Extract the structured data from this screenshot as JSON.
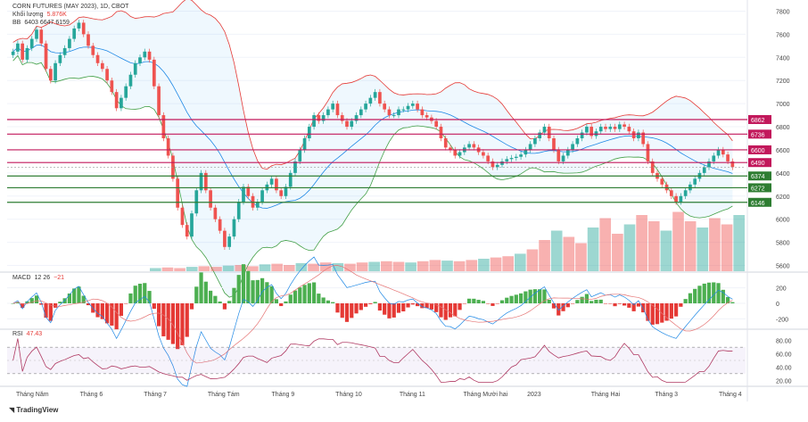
{
  "chart_data": {
    "type": "candlestick",
    "title": "CORN FUTURES (MAY 2023), 1D, CBOT",
    "overlays": {
      "volume_label": "Khối lượng",
      "volume_value": "5.876K",
      "bb_label": "BB",
      "bb_values": "6403 6647 6159"
    },
    "price_axis": {
      "ticks": [
        "7800",
        "7600",
        "7400",
        "7200",
        "7000",
        "6800",
        "6600",
        "6400",
        "6200",
        "6000",
        "5800",
        "5600"
      ],
      "range": [
        5550,
        7850
      ]
    },
    "price_levels": [
      {
        "value": 6862,
        "label": "6862",
        "color": "#c2185b"
      },
      {
        "value": 6736,
        "label": "6736",
        "color": "#c2185b"
      },
      {
        "value": 6600,
        "label": "6600",
        "color": "#c2185b"
      },
      {
        "value": 6490,
        "label": "6490",
        "color": "#c2185b"
      },
      {
        "value": 6374,
        "label": "6374",
        "color": "#2e7d32"
      },
      {
        "value": 6272,
        "label": "6272",
        "color": "#2e7d32"
      },
      {
        "value": 6146,
        "label": "6146",
        "color": "#2e7d32"
      }
    ],
    "time_axis": [
      "Tháng Năm",
      "Tháng 6",
      "Tháng 7",
      "Tháng Tám",
      "Tháng 9",
      "Tháng 10",
      "Tháng 11",
      "Tháng Mười hai",
      "2023",
      "Tháng Hai",
      "Tháng 3",
      "Tháng 4"
    ],
    "close_series": [
      7450,
      7520,
      7380,
      7480,
      7560,
      7640,
      7520,
      7300,
      7200,
      7350,
      7420,
      7480,
      7560,
      7650,
      7700,
      7600,
      7500,
      7420,
      7350,
      7300,
      7200,
      7100,
      6960,
      7050,
      7150,
      7250,
      7350,
      7400,
      7450,
      7380,
      7150,
      6900,
      6700,
      6550,
      6350,
      6100,
      5950,
      5850,
      6050,
      6250,
      6400,
      6250,
      6100,
      6000,
      5900,
      5760,
      5850,
      6000,
      6150,
      6280,
      6200,
      6100,
      6150,
      6250,
      6300,
      6350,
      6250,
      6200,
      6280,
      6400,
      6500,
      6600,
      6700,
      6800,
      6900,
      6850,
      6900,
      6950,
      7000,
      6900,
      6850,
      6800,
      6850,
      6900,
      6950,
      7000,
      7050,
      7100,
      7000,
      6950,
      6900,
      6900,
      6950,
      6950,
      6980,
      7000,
      6950,
      6900,
      6880,
      6850,
      6800,
      6700,
      6620,
      6600,
      6550,
      6580,
      6620,
      6650,
      6620,
      6580,
      6550,
      6500,
      6450,
      6470,
      6500,
      6520,
      6530,
      6540,
      6560,
      6600,
      6650,
      6700,
      6750,
      6800,
      6700,
      6600,
      6500,
      6550,
      6600,
      6650,
      6700,
      6750,
      6800,
      6720,
      6760,
      6800,
      6780,
      6800,
      6780,
      6820,
      6800,
      6760,
      6700,
      6750,
      6650,
      6500,
      6400,
      6350,
      6300,
      6250,
      6200,
      6150,
      6200,
      6250,
      6300,
      6350,
      6400,
      6450,
      6500,
      6550,
      6600,
      6560,
      6500,
      6450
    ],
    "volume": {
      "values": [
        0.05,
        0.06,
        0.05,
        0.07,
        0.08,
        0.07,
        0.09,
        0.1,
        0.08,
        0.11,
        0.12,
        0.1,
        0.13,
        0.12,
        0.14,
        0.13,
        0.12,
        0.14,
        0.15,
        0.16,
        0.15,
        0.14,
        0.16,
        0.18,
        0.17,
        0.16,
        0.18,
        0.2,
        0.22,
        0.24,
        0.28,
        0.35,
        0.5,
        0.65,
        0.55,
        0.45,
        0.7,
        0.85,
        0.6,
        0.75,
        0.9,
        0.8,
        0.65,
        0.95,
        0.8,
        0.7,
        0.85,
        0.75,
        0.9
      ]
    },
    "macd": {
      "label": "MACD",
      "params": "12 26",
      "value": "−21",
      "ticks": [
        "200",
        "0",
        "-200"
      ],
      "range": [
        -300,
        300
      ]
    },
    "rsi": {
      "label": "RSI",
      "value": "47.43",
      "ticks": [
        "80.00",
        "60.00",
        "40.00",
        "20.00"
      ],
      "range": [
        15,
        85
      ],
      "bands": [
        70,
        30
      ],
      "mid": 50
    },
    "colors": {
      "up": "#26a69a",
      "down": "#ef5350",
      "bb_upper": "#e53935",
      "bb_lower": "#43a047",
      "bb_basis": "#1e88e5",
      "rsi_line": "#b03a63",
      "macd_line": "#1e88e5",
      "signal_line": "#e57373"
    }
  },
  "branding": "TradingView"
}
